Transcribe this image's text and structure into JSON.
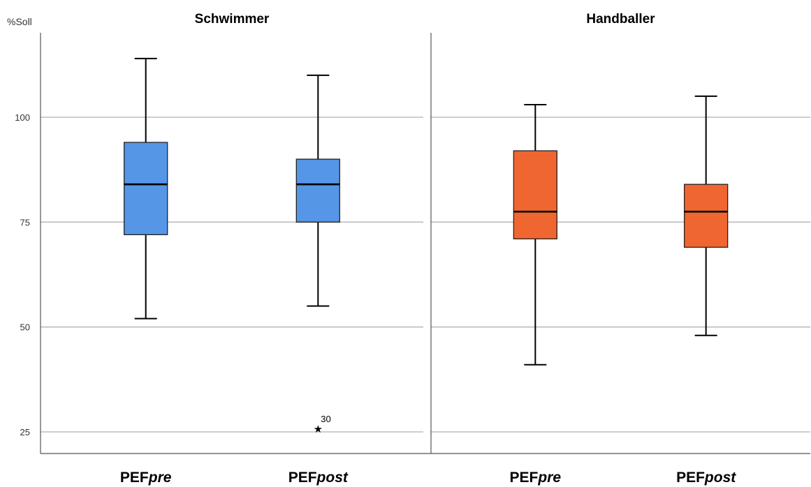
{
  "chart_data": {
    "type": "box",
    "ylabel": "%Soll",
    "yticks": [
      25,
      50,
      75,
      100
    ],
    "ylim": [
      20,
      120
    ],
    "grid": true,
    "panels": [
      {
        "title": "Schwimmer",
        "color": "#5596E6",
        "boxes": [
          {
            "label_main": "PEF",
            "label_italic": "pre",
            "min": 52,
            "q1": 72,
            "median": 84,
            "q3": 94,
            "max": 114
          },
          {
            "label_main": "PEF",
            "label_italic": "post",
            "min": 55,
            "q1": 75,
            "median": 84,
            "q3": 90,
            "max": 110,
            "outliers": [
              {
                "value": 26,
                "label": "30"
              }
            ]
          }
        ]
      },
      {
        "title": "Handballer",
        "color": "#F06630",
        "boxes": [
          {
            "label_main": "PEF",
            "label_italic": "pre",
            "min": 41,
            "q1": 71,
            "median": 77.5,
            "q3": 92,
            "max": 103
          },
          {
            "label_main": "PEF",
            "label_italic": "post",
            "min": 48,
            "q1": 69,
            "median": 77.5,
            "q3": 84,
            "max": 105
          }
        ]
      }
    ]
  }
}
